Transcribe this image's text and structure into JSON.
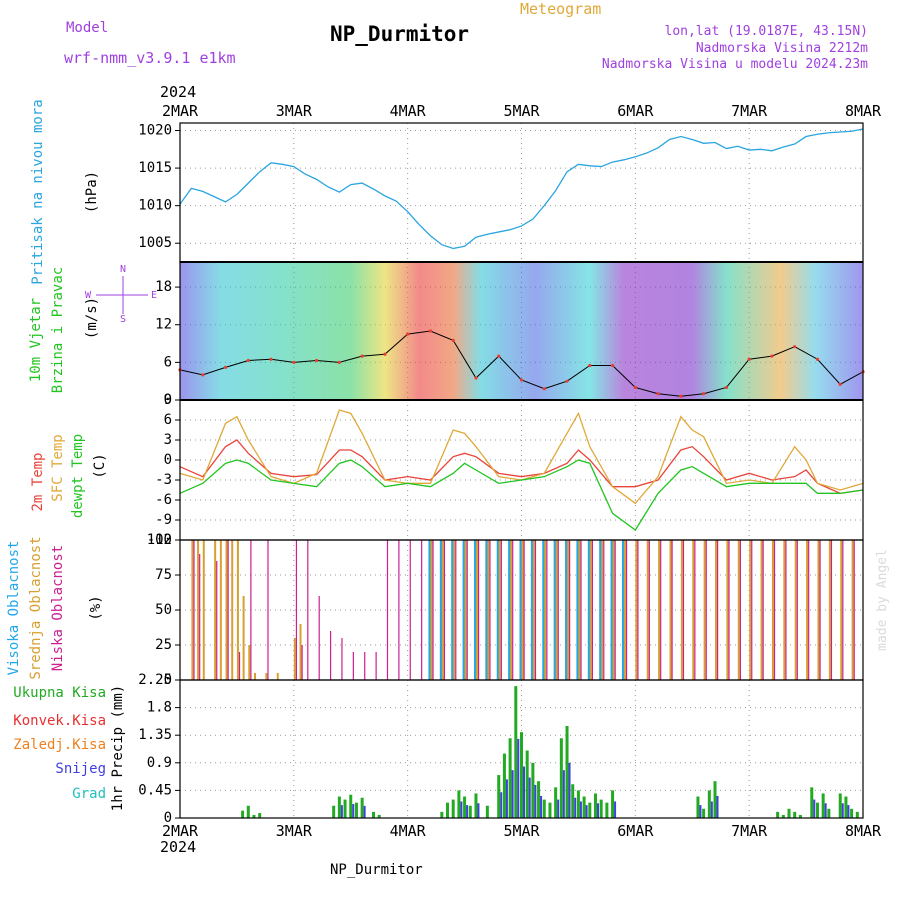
{
  "header": {
    "model_label": "Model",
    "model_name": "wrf-nmm_v3.9.1  e1km",
    "title": "NP_Durmitor",
    "meteogram_label": "Meteogram",
    "lonlat": "lon,lat (19.0187E, 43.15N)",
    "elevation": "Nadmorska Visina 2212m",
    "model_elevation": "Nadmorska Visina u modelu 2024.23m",
    "footer_station": "NP_Durmitor",
    "credit": "made by Angel",
    "year_top": "2024",
    "year_bottom": "2024"
  },
  "colors": {
    "pressure": "#2aa5e0",
    "temp2m": "#e8443a",
    "sfc_temp": "#e0a838",
    "dewpoint": "#22c422",
    "cloud_high": "#22a8e8",
    "cloud_mid": "#d8a030",
    "cloud_low": "#cc2090",
    "precip_total": "#22aa22",
    "precip_conv": "#e83030",
    "precip_frozen": "#ee8020",
    "precip_snow": "#4040e0",
    "precip_hail": "#20c0c0",
    "purple": "#a040e0"
  },
  "wind_legend": [
    "N",
    "S",
    "W",
    "E"
  ],
  "chart_data": [
    {
      "type": "line",
      "panel": "pressure",
      "ylabel": [
        "Pritisak na nivou mora",
        "(hPa)"
      ],
      "x_ticks": [
        "2MAR",
        "3MAR",
        "4MAR",
        "5MAR",
        "6MAR",
        "7MAR",
        "8MAR"
      ],
      "ylim": [
        1002.5,
        1021
      ],
      "yticks": [
        1005,
        1010,
        1015,
        1020
      ],
      "x": [
        0,
        0.1,
        0.2,
        0.3,
        0.4,
        0.5,
        0.6,
        0.7,
        0.8,
        0.9,
        1.0,
        1.1,
        1.2,
        1.3,
        1.4,
        1.5,
        1.6,
        1.7,
        1.8,
        1.9,
        2.0,
        2.1,
        2.2,
        2.3,
        2.4,
        2.5,
        2.6,
        2.7,
        2.8,
        2.9,
        3.0,
        3.1,
        3.2,
        3.3,
        3.4,
        3.5,
        3.6,
        3.7,
        3.8,
        3.9,
        4.0,
        4.1,
        4.2,
        4.3,
        4.4,
        4.5,
        4.6,
        4.7,
        4.8,
        4.9,
        5.0,
        5.1,
        5.2,
        5.3,
        5.4,
        5.5,
        5.6,
        5.7,
        5.8,
        5.9,
        6.0
      ],
      "series": [
        {
          "values": [
            1010.2,
            1012.3,
            1011.9,
            1011.2,
            1010.5,
            1011.5,
            1013.0,
            1014.5,
            1015.7,
            1015.5,
            1015.2,
            1014.2,
            1013.5,
            1012.5,
            1011.8,
            1012.8,
            1013.0,
            1012.2,
            1011.3,
            1010.6,
            1009.2,
            1007.5,
            1006.0,
            1004.8,
            1004.3,
            1004.6,
            1005.8,
            1006.2,
            1006.5,
            1006.8,
            1007.3,
            1008.2,
            1010.0,
            1012.0,
            1014.5,
            1015.5,
            1015.3,
            1015.2,
            1015.8,
            1016.1,
            1016.5,
            1017.0,
            1017.7,
            1018.8,
            1019.2,
            1018.8,
            1018.3,
            1018.4,
            1017.6,
            1017.9,
            1017.4,
            1017.5,
            1017.3,
            1017.8,
            1018.2,
            1019.2,
            1019.5,
            1019.7,
            1019.8,
            1019.9,
            1020.2
          ]
        }
      ]
    },
    {
      "type": "line",
      "panel": "wind",
      "ylabel": [
        "10m Vjetar",
        "Brzina i Pravac",
        "(m/s)"
      ],
      "ylim": [
        0,
        22
      ],
      "yticks": [
        0,
        6,
        12,
        18
      ],
      "x": [
        0,
        0.2,
        0.4,
        0.6,
        0.8,
        1.0,
        1.2,
        1.4,
        1.6,
        1.8,
        2.0,
        2.2,
        2.4,
        2.6,
        2.8,
        3.0,
        3.2,
        3.4,
        3.6,
        3.8,
        4.0,
        4.2,
        4.4,
        4.6,
        4.8,
        5.0,
        5.2,
        5.4,
        5.6,
        5.8,
        6.0
      ],
      "series": [
        {
          "values": [
            4.8,
            4.0,
            5.2,
            6.3,
            6.5,
            6.0,
            6.3,
            6.0,
            7.0,
            7.3,
            10.5,
            11.0,
            9.5,
            3.5,
            7.0,
            3.2,
            1.8,
            3.0,
            5.5,
            5.5,
            2.0,
            1.0,
            0.6,
            1.0,
            2.0,
            6.5,
            7.0,
            8.5,
            6.5,
            2.5,
            4.5
          ]
        }
      ]
    },
    {
      "type": "line",
      "panel": "temperature",
      "ylabel": [
        "2m Temp",
        "SFC Temp",
        "dewpt Temp",
        "(C)"
      ],
      "ylim": [
        -12,
        9
      ],
      "yticks": [
        -12,
        -9,
        -6,
        -3,
        0,
        3,
        6,
        9
      ],
      "x": [
        0,
        0.2,
        0.4,
        0.5,
        0.6,
        0.8,
        1.0,
        1.2,
        1.4,
        1.5,
        1.6,
        1.8,
        2.0,
        2.2,
        2.4,
        2.5,
        2.6,
        2.8,
        3.0,
        3.2,
        3.4,
        3.5,
        3.6,
        3.8,
        4.0,
        4.2,
        4.4,
        4.5,
        4.6,
        4.8,
        5.0,
        5.2,
        5.4,
        5.5,
        5.6,
        5.8,
        6.0
      ],
      "series": [
        {
          "name": "2m Temp",
          "values": [
            -1.0,
            -2.5,
            2.0,
            3.0,
            1.0,
            -2.0,
            -2.5,
            -2.2,
            1.5,
            1.5,
            0.5,
            -3.0,
            -2.5,
            -3.0,
            0.5,
            1.0,
            0.5,
            -2.0,
            -2.5,
            -2.0,
            -0.5,
            1.5,
            0.0,
            -4.0,
            -4.0,
            -3.0,
            1.5,
            2.0,
            0.5,
            -3.0,
            -2.0,
            -3.0,
            -2.5,
            -1.5,
            -3.5,
            -5.0,
            -4.5
          ]
        },
        {
          "name": "SFC Temp",
          "values": [
            -2.0,
            -3.0,
            5.5,
            6.5,
            3.0,
            -2.5,
            -3.5,
            -2.0,
            7.5,
            7.0,
            4.0,
            -3.0,
            -3.5,
            -3.5,
            4.5,
            4.0,
            2.0,
            -2.5,
            -3.0,
            -2.0,
            4.0,
            7.0,
            2.0,
            -4.0,
            -6.5,
            -2.5,
            6.5,
            4.5,
            3.5,
            -3.5,
            -3.0,
            -3.5,
            2.0,
            0.0,
            -3.5,
            -4.5,
            -3.5
          ]
        },
        {
          "name": "dewpt Temp",
          "values": [
            -5.0,
            -3.5,
            -0.5,
            0.0,
            -0.5,
            -3.0,
            -3.5,
            -4.0,
            -0.5,
            0.0,
            -1.0,
            -4.0,
            -3.5,
            -4.0,
            -2.0,
            -0.5,
            -1.5,
            -3.5,
            -3.0,
            -2.5,
            -1.0,
            0.0,
            -0.5,
            -8.0,
            -10.5,
            -5.0,
            -1.5,
            -1.0,
            -2.0,
            -4.0,
            -3.5,
            -3.5,
            -3.5,
            -3.5,
            -5.0,
            -5.0,
            -4.5
          ]
        }
      ]
    },
    {
      "type": "bar",
      "panel": "cloud",
      "ylabel": [
        "Visoka Oblacnost",
        "Srednja Oblacnost",
        "Niska Oblacnost",
        "(%)"
      ],
      "ylim": [
        0,
        100
      ],
      "yticks": [
        0,
        25,
        50,
        75,
        100
      ],
      "x": [
        0.1,
        0.15,
        0.2,
        0.3,
        0.35,
        0.4,
        0.45,
        0.5,
        0.55,
        0.6,
        0.65,
        0.75,
        0.85,
        1.0,
        1.05,
        1.1,
        1.2,
        1.3,
        1.4,
        1.5,
        1.6,
        1.7,
        1.8,
        1.9,
        2.0,
        2.1,
        2.2,
        2.3,
        2.4,
        2.5,
        2.6,
        2.7,
        2.8,
        2.9,
        3.0,
        3.1,
        3.2,
        3.3,
        3.4,
        3.5,
        3.6,
        3.7,
        3.8,
        3.9,
        4.0,
        4.1,
        4.2,
        4.3,
        4.4,
        4.5,
        4.6,
        4.7,
        4.8,
        4.9,
        5.0,
        5.1,
        5.2,
        5.3,
        5.4,
        5.5,
        5.6,
        5.7,
        5.8,
        5.9
      ],
      "series": [
        {
          "name": "Visoka Oblacnost",
          "values": [
            0,
            0,
            0,
            0,
            0,
            0,
            0,
            0,
            0,
            0,
            0,
            0,
            0,
            0,
            0,
            0,
            0,
            0,
            0,
            0,
            0,
            0,
            0,
            0,
            0,
            0,
            100,
            100,
            100,
            100,
            100,
            100,
            100,
            100,
            100,
            100,
            100,
            100,
            100,
            100,
            100,
            100,
            100,
            100,
            0,
            0,
            0,
            0,
            0,
            0,
            0,
            0,
            0,
            0,
            0,
            0,
            0,
            0,
            0,
            0,
            0,
            0,
            0,
            0
          ]
        },
        {
          "name": "Srednja Oblacnost",
          "values": [
            100,
            100,
            100,
            100,
            100,
            100,
            100,
            100,
            60,
            25,
            5,
            5,
            5,
            30,
            40,
            0,
            0,
            0,
            0,
            0,
            0,
            0,
            0,
            0,
            0,
            0,
            100,
            100,
            100,
            100,
            100,
            100,
            100,
            100,
            100,
            100,
            100,
            100,
            100,
            100,
            100,
            100,
            100,
            100,
            100,
            100,
            100,
            100,
            100,
            100,
            100,
            100,
            100,
            100,
            100,
            100,
            100,
            100,
            100,
            100,
            100,
            100,
            100,
            100
          ]
        },
        {
          "name": "Niska Oblacnost",
          "values": [
            100,
            90,
            0,
            85,
            0,
            100,
            0,
            20,
            0,
            100,
            0,
            100,
            0,
            100,
            25,
            100,
            60,
            35,
            30,
            20,
            20,
            20,
            100,
            100,
            100,
            100,
            100,
            100,
            100,
            100,
            100,
            100,
            100,
            100,
            100,
            100,
            100,
            100,
            100,
            100,
            100,
            100,
            100,
            100,
            100,
            100,
            100,
            100,
            100,
            100,
            100,
            100,
            100,
            100,
            100,
            100,
            100,
            100,
            100,
            100,
            100,
            100,
            100,
            100
          ]
        }
      ]
    },
    {
      "type": "bar",
      "panel": "precip",
      "ylabel": [
        "1hr Precip (mm)"
      ],
      "legend": [
        "Ukupna Kisa",
        "Konvek.Kisa",
        "Zaledj.Kisa",
        "Snijeg",
        "Grad"
      ],
      "ylim": [
        0,
        2.25
      ],
      "yticks": [
        0,
        0.45,
        0.9,
        1.35,
        1.8,
        2.25
      ],
      "x": [
        0.55,
        0.6,
        0.65,
        0.7,
        1.35,
        1.4,
        1.45,
        1.5,
        1.55,
        1.6,
        1.7,
        1.75,
        2.3,
        2.35,
        2.4,
        2.45,
        2.5,
        2.55,
        2.6,
        2.7,
        2.8,
        2.85,
        2.9,
        2.95,
        3.0,
        3.05,
        3.1,
        3.15,
        3.2,
        3.25,
        3.3,
        3.35,
        3.4,
        3.45,
        3.5,
        3.55,
        3.6,
        3.65,
        3.7,
        3.75,
        3.8,
        4.55,
        4.6,
        4.65,
        4.7,
        5.25,
        5.3,
        5.35,
        5.4,
        5.45,
        5.55,
        5.6,
        5.65,
        5.7,
        5.8,
        5.85,
        5.9,
        5.95
      ],
      "series": [
        {
          "name": "Ukupna Kisa",
          "values": [
            0.12,
            0.2,
            0.05,
            0.08,
            0.2,
            0.35,
            0.3,
            0.38,
            0.25,
            0.33,
            0.1,
            0.05,
            0.1,
            0.25,
            0.3,
            0.45,
            0.35,
            0.2,
            0.4,
            0.2,
            0.7,
            1.05,
            1.3,
            2.15,
            1.4,
            1.1,
            0.9,
            0.6,
            0.3,
            0.25,
            0.5,
            1.3,
            1.5,
            0.55,
            0.45,
            0.35,
            0.25,
            0.4,
            0.3,
            0.25,
            0.45,
            0.35,
            0.15,
            0.45,
            0.6,
            0.1,
            0.05,
            0.15,
            0.1,
            0.05,
            0.5,
            0.25,
            0.4,
            0.15,
            0.4,
            0.35,
            0.15,
            0.1
          ]
        }
      ]
    }
  ]
}
